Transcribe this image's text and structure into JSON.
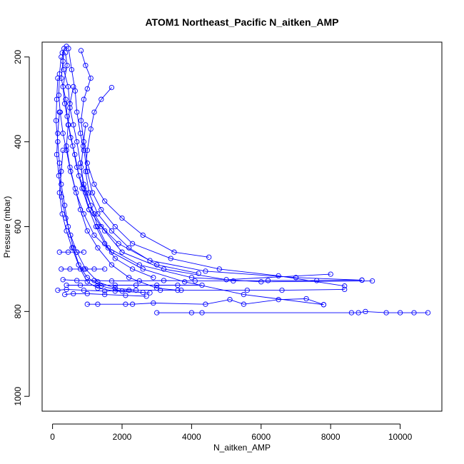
{
  "chart_data": {
    "type": "scatter",
    "title": "ATOM1 Northeast_Pacific N_aitken_AMP",
    "xlabel": "N_aitken_AMP",
    "ylabel": "Pressure (mbar)",
    "xlim": [
      -300,
      11200
    ],
    "ylim": [
      1035,
      165
    ],
    "y_reversed": true,
    "x_ticks": [
      0,
      2000,
      4000,
      6000,
      8000,
      10000
    ],
    "x_tick_labels": [
      "0",
      "2000",
      "4000",
      "6000",
      "8000",
      "10000"
    ],
    "y_ticks": [
      200,
      400,
      600,
      800,
      1000
    ],
    "y_tick_labels": [
      "200",
      "400",
      "600",
      "800",
      "1000"
    ],
    "series_color": "#0000ff",
    "marker": "open-circle",
    "grid": false,
    "profiles": [
      [
        [
          400,
          175
        ],
        [
          280,
          190
        ],
        [
          320,
          230
        ],
        [
          450,
          270
        ],
        [
          500,
          320
        ],
        [
          600,
          360
        ],
        [
          700,
          400
        ],
        [
          800,
          450
        ],
        [
          900,
          500
        ],
        [
          1100,
          550
        ],
        [
          1300,
          600
        ],
        [
          1600,
          650
        ],
        [
          2500,
          690
        ],
        [
          4000,
          720
        ],
        [
          6000,
          730
        ],
        [
          9200,
          728
        ]
      ],
      [
        [
          330,
          180
        ],
        [
          300,
          210
        ],
        [
          250,
          250
        ],
        [
          380,
          300
        ],
        [
          420,
          340
        ],
        [
          520,
          390
        ],
        [
          640,
          430
        ],
        [
          760,
          480
        ],
        [
          950,
          520
        ],
        [
          1200,
          570
        ],
        [
          1500,
          610
        ],
        [
          2000,
          660
        ],
        [
          3200,
          700
        ],
        [
          5000,
          725
        ],
        [
          8000,
          712
        ]
      ],
      [
        [
          370,
          190
        ],
        [
          420,
          220
        ],
        [
          300,
          270
        ],
        [
          350,
          310
        ],
        [
          460,
          360
        ],
        [
          580,
          410
        ],
        [
          700,
          460
        ],
        [
          850,
          510
        ],
        [
          1050,
          560
        ],
        [
          1400,
          600
        ],
        [
          1900,
          640
        ],
        [
          2800,
          680
        ],
        [
          4400,
          705
        ],
        [
          7000,
          720
        ],
        [
          8900,
          726
        ]
      ],
      [
        [
          250,
          200
        ],
        [
          200,
          240
        ],
        [
          180,
          290
        ],
        [
          220,
          330
        ],
        [
          300,
          380
        ],
        [
          400,
          420
        ],
        [
          520,
          470
        ],
        [
          680,
          520
        ],
        [
          900,
          570
        ],
        [
          1200,
          620
        ],
        [
          1700,
          660
        ],
        [
          2600,
          700
        ],
        [
          3800,
          730
        ],
        [
          5500,
          760
        ],
        [
          7800,
          784
        ]
      ],
      [
        [
          460,
          180
        ],
        [
          550,
          230
        ],
        [
          650,
          280
        ],
        [
          700,
          330
        ],
        [
          800,
          380
        ],
        [
          900,
          420
        ],
        [
          1000,
          470
        ],
        [
          1150,
          520
        ],
        [
          1400,
          560
        ],
        [
          1800,
          600
        ],
        [
          2300,
          640
        ],
        [
          3400,
          675
        ],
        [
          4800,
          700
        ],
        [
          6500,
          716
        ],
        [
          8400,
          740
        ]
      ],
      [
        [
          820,
          185
        ],
        [
          950,
          220
        ],
        [
          1100,
          250
        ],
        [
          1000,
          275
        ],
        [
          900,
          300
        ],
        [
          820,
          350
        ],
        [
          900,
          400
        ],
        [
          1000,
          450
        ],
        [
          1200,
          500
        ],
        [
          1500,
          540
        ],
        [
          2000,
          580
        ],
        [
          2600,
          620
        ],
        [
          3500,
          660
        ],
        [
          4500,
          672
        ]
      ],
      [
        [
          1700,
          272
        ],
        [
          1400,
          300
        ],
        [
          1200,
          330
        ],
        [
          1100,
          370
        ],
        [
          1000,
          420
        ],
        [
          950,
          470
        ],
        [
          1050,
          520
        ],
        [
          1300,
          570
        ],
        [
          1700,
          610
        ],
        [
          2200,
          650
        ],
        [
          3000,
          690
        ],
        [
          4200,
          710
        ]
      ],
      [
        [
          150,
          250
        ],
        [
          120,
          300
        ],
        [
          100,
          350
        ],
        [
          150,
          400
        ],
        [
          200,
          450
        ],
        [
          250,
          500
        ],
        [
          350,
          550
        ],
        [
          450,
          600
        ],
        [
          600,
          650
        ],
        [
          800,
          700
        ],
        [
          1000,
          730
        ],
        [
          1300,
          745
        ],
        [
          1800,
          752
        ],
        [
          2600,
          755
        ]
      ],
      [
        [
          600,
          270
        ],
        [
          500,
          310
        ],
        [
          450,
          360
        ],
        [
          400,
          410
        ],
        [
          500,
          460
        ],
        [
          650,
          510
        ],
        [
          800,
          560
        ],
        [
          1000,
          610
        ],
        [
          1300,
          650
        ],
        [
          1700,
          690
        ],
        [
          2200,
          720
        ],
        [
          3000,
          745
        ],
        [
          3600,
          750
        ]
      ],
      [
        [
          200,
          330
        ],
        [
          150,
          380
        ],
        [
          120,
          430
        ],
        [
          180,
          480
        ],
        [
          260,
          530
        ],
        [
          380,
          580
        ],
        [
          520,
          620
        ],
        [
          700,
          660
        ],
        [
          950,
          700
        ],
        [
          1300,
          730
        ],
        [
          1800,
          745
        ],
        [
          2400,
          750
        ]
      ],
      [
        [
          300,
          420
        ],
        [
          250,
          470
        ],
        [
          200,
          520
        ],
        [
          280,
          570
        ],
        [
          400,
          610
        ],
        [
          560,
          650
        ],
        [
          750,
          690
        ],
        [
          1000,
          720
        ],
        [
          1400,
          740
        ],
        [
          2000,
          752
        ],
        [
          2800,
          756
        ]
      ],
      [
        [
          950,
          360
        ],
        [
          880,
          410
        ],
        [
          820,
          460
        ],
        [
          900,
          510
        ],
        [
          1050,
          560
        ],
        [
          1250,
          600
        ],
        [
          1500,
          640
        ],
        [
          1800,
          675
        ],
        [
          2300,
          700
        ],
        [
          2900,
          720
        ]
      ],
      [
        [
          3000,
          803
        ],
        [
          4000,
          803
        ],
        [
          4300,
          803
        ],
        [
          8600,
          803
        ],
        [
          8800,
          803
        ],
        [
          9000,
          800
        ],
        [
          9600,
          803
        ],
        [
          10000,
          803
        ],
        [
          10400,
          803
        ],
        [
          10800,
          803
        ]
      ],
      [
        [
          1000,
          783
        ],
        [
          1300,
          783
        ],
        [
          2100,
          783
        ],
        [
          2300,
          783
        ],
        [
          2900,
          780
        ],
        [
          4400,
          783
        ],
        [
          5100,
          772
        ],
        [
          5500,
          783
        ],
        [
          6500,
          772
        ],
        [
          7300,
          770
        ],
        [
          7800,
          784
        ]
      ],
      [
        [
          150,
          750
        ],
        [
          400,
          748
        ],
        [
          900,
          750
        ],
        [
          1500,
          752
        ],
        [
          2200,
          750
        ],
        [
          3100,
          750
        ],
        [
          3700,
          750
        ],
        [
          5600,
          750
        ],
        [
          6600,
          750
        ],
        [
          8400,
          748
        ]
      ],
      [
        [
          300,
          725
        ],
        [
          700,
          727
        ],
        [
          1200,
          727
        ],
        [
          1700,
          728
        ],
        [
          2500,
          728
        ],
        [
          3200,
          727
        ],
        [
          4100,
          728
        ],
        [
          5200,
          728
        ],
        [
          6200,
          727
        ],
        [
          7600,
          727
        ],
        [
          8900,
          726
        ]
      ],
      [
        [
          400,
          738
        ],
        [
          800,
          738
        ],
        [
          1300,
          738
        ],
        [
          1800,
          738
        ],
        [
          2400,
          738
        ],
        [
          3000,
          738
        ],
        [
          3600,
          738
        ],
        [
          4300,
          738
        ]
      ],
      [
        [
          250,
          700
        ],
        [
          500,
          700
        ],
        [
          900,
          700
        ],
        [
          1200,
          700
        ],
        [
          1500,
          700
        ]
      ],
      [
        [
          200,
          660
        ],
        [
          450,
          660
        ],
        [
          700,
          660
        ],
        [
          900,
          660
        ]
      ],
      [
        [
          350,
          760
        ],
        [
          600,
          758
        ],
        [
          1000,
          758
        ],
        [
          1500,
          760
        ],
        [
          2100,
          762
        ],
        [
          2700,
          764
        ]
      ]
    ]
  }
}
